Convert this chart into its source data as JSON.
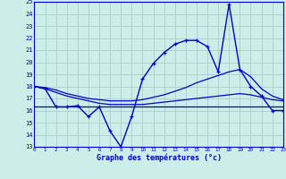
{
  "xlabel": "Graphe des températures (°c)",
  "bg_color": "#cceee8",
  "grid_color": "#aacccc",
  "line_color": "#0000cc",
  "ylim": [
    13,
    25
  ],
  "xlim": [
    0,
    23
  ],
  "yticks": [
    13,
    14,
    15,
    16,
    17,
    18,
    19,
    20,
    21,
    22,
    23,
    24,
    25
  ],
  "xticks": [
    0,
    1,
    2,
    3,
    4,
    5,
    6,
    7,
    8,
    9,
    10,
    11,
    12,
    13,
    14,
    15,
    16,
    17,
    18,
    19,
    20,
    21,
    22,
    23
  ],
  "temp_line": [
    18.0,
    17.8,
    16.3,
    16.3,
    16.4,
    15.5,
    16.3,
    14.3,
    13.0,
    15.5,
    18.6,
    19.9,
    20.8,
    21.5,
    21.8,
    21.8,
    21.3,
    19.2,
    24.8,
    19.4,
    18.0,
    17.2,
    16.0,
    16.0
  ],
  "trend_line1": [
    18.0,
    17.9,
    17.7,
    17.4,
    17.2,
    17.0,
    16.9,
    16.8,
    16.8,
    16.8,
    16.9,
    17.1,
    17.3,
    17.6,
    17.9,
    18.3,
    18.6,
    18.9,
    19.2,
    19.4,
    18.8,
    17.8,
    17.2,
    16.9
  ],
  "trend_line2": [
    16.3,
    16.3,
    16.3,
    16.3,
    16.3,
    16.3,
    16.3,
    16.3,
    16.3,
    16.3,
    16.3,
    16.3,
    16.3,
    16.3,
    16.3,
    16.3,
    16.3,
    16.3,
    16.3,
    16.3,
    16.3,
    16.3,
    16.3,
    16.3
  ],
  "trend_line3": [
    18.0,
    17.8,
    17.5,
    17.2,
    17.0,
    16.8,
    16.6,
    16.5,
    16.5,
    16.5,
    16.5,
    16.6,
    16.7,
    16.8,
    16.9,
    17.0,
    17.1,
    17.2,
    17.3,
    17.4,
    17.3,
    17.1,
    16.9,
    16.8
  ]
}
